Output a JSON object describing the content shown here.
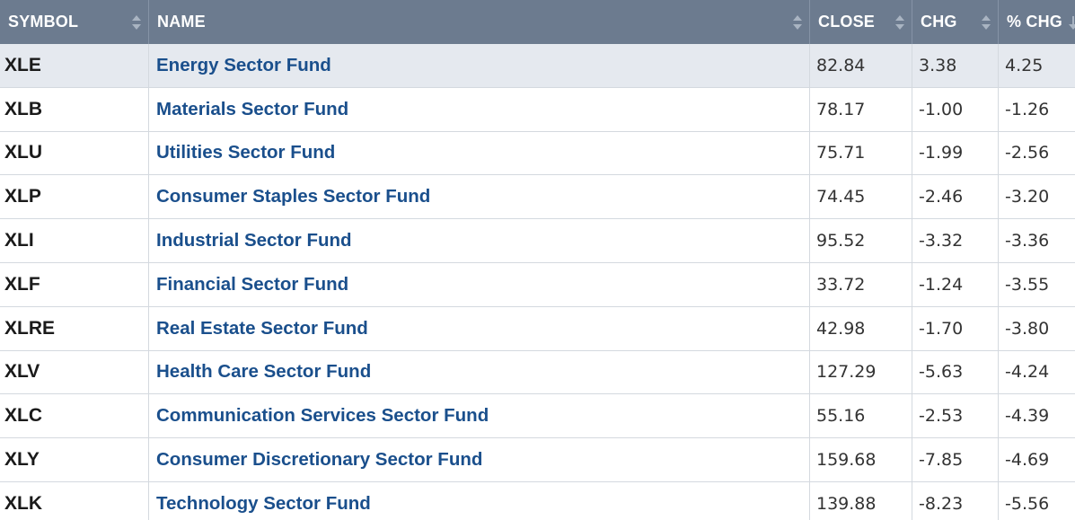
{
  "columns": [
    {
      "key": "symbol",
      "label": "SYMBOL"
    },
    {
      "key": "name",
      "label": "NAME"
    },
    {
      "key": "close",
      "label": "CLOSE"
    },
    {
      "key": "chg",
      "label": "CHG"
    },
    {
      "key": "pct_chg",
      "label": "% CHG"
    }
  ],
  "colors": {
    "header_bg": "#6c7b8f",
    "highlight_row_bg": "#e5e9ef",
    "link": "#1a4f8c"
  },
  "rows": [
    {
      "symbol": "XLE",
      "name": "Energy Sector Fund",
      "close": "82.84",
      "chg": "3.38",
      "pct_chg": "4.25",
      "highlighted": true
    },
    {
      "symbol": "XLB",
      "name": "Materials Sector Fund",
      "close": "78.17",
      "chg": "-1.00",
      "pct_chg": "-1.26"
    },
    {
      "symbol": "XLU",
      "name": "Utilities Sector Fund",
      "close": "75.71",
      "chg": "-1.99",
      "pct_chg": "-2.56"
    },
    {
      "symbol": "XLP",
      "name": "Consumer Staples Sector Fund",
      "close": "74.45",
      "chg": "-2.46",
      "pct_chg": "-3.20"
    },
    {
      "symbol": "XLI",
      "name": "Industrial Sector Fund",
      "close": "95.52",
      "chg": "-3.32",
      "pct_chg": "-3.36"
    },
    {
      "symbol": "XLF",
      "name": "Financial Sector Fund",
      "close": "33.72",
      "chg": "-1.24",
      "pct_chg": "-3.55"
    },
    {
      "symbol": "XLRE",
      "name": "Real Estate Sector Fund",
      "close": "42.98",
      "chg": "-1.70",
      "pct_chg": "-3.80"
    },
    {
      "symbol": "XLV",
      "name": "Health Care Sector Fund",
      "close": "127.29",
      "chg": "-5.63",
      "pct_chg": "-4.24"
    },
    {
      "symbol": "XLC",
      "name": "Communication Services Sector Fund",
      "close": "55.16",
      "chg": "-2.53",
      "pct_chg": "-4.39"
    },
    {
      "symbol": "XLY",
      "name": "Consumer Discretionary Sector Fund",
      "close": "159.68",
      "chg": "-7.85",
      "pct_chg": "-4.69"
    },
    {
      "symbol": "XLK",
      "name": "Technology Sector Fund",
      "close": "139.88",
      "chg": "-8.23",
      "pct_chg": "-5.56"
    }
  ]
}
